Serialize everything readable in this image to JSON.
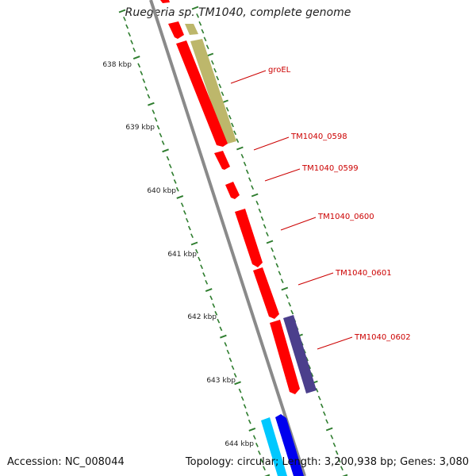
{
  "title": "Ruegeria sp. TM1040, complete genome",
  "accession": "Accession: NC_008044",
  "summary": "Topology: circular; Length: 3,200,938 bp; Genes: 3,080",
  "colors": {
    "backbone": "#8a8a8a",
    "tick": "#2e7d2e",
    "gene_red": "#ff0000",
    "gene_olive": "#bdb76b",
    "gene_purple": "#4b3f8c",
    "gene_cyan": "#00c8ff",
    "gene_blue": "#0000ee",
    "label": "#cc0000"
  },
  "kbp_ticks": [
    "638 kbp",
    "639 kbp",
    "640 kbp",
    "641 kbp",
    "642 kbp",
    "643 kbp",
    "644 kbp"
  ],
  "gene_labels": [
    "groEL",
    "TM1040_0598",
    "TM1040_0599",
    "TM1040_0600",
    "TM1040_0601",
    "TM1040_0602"
  ]
}
